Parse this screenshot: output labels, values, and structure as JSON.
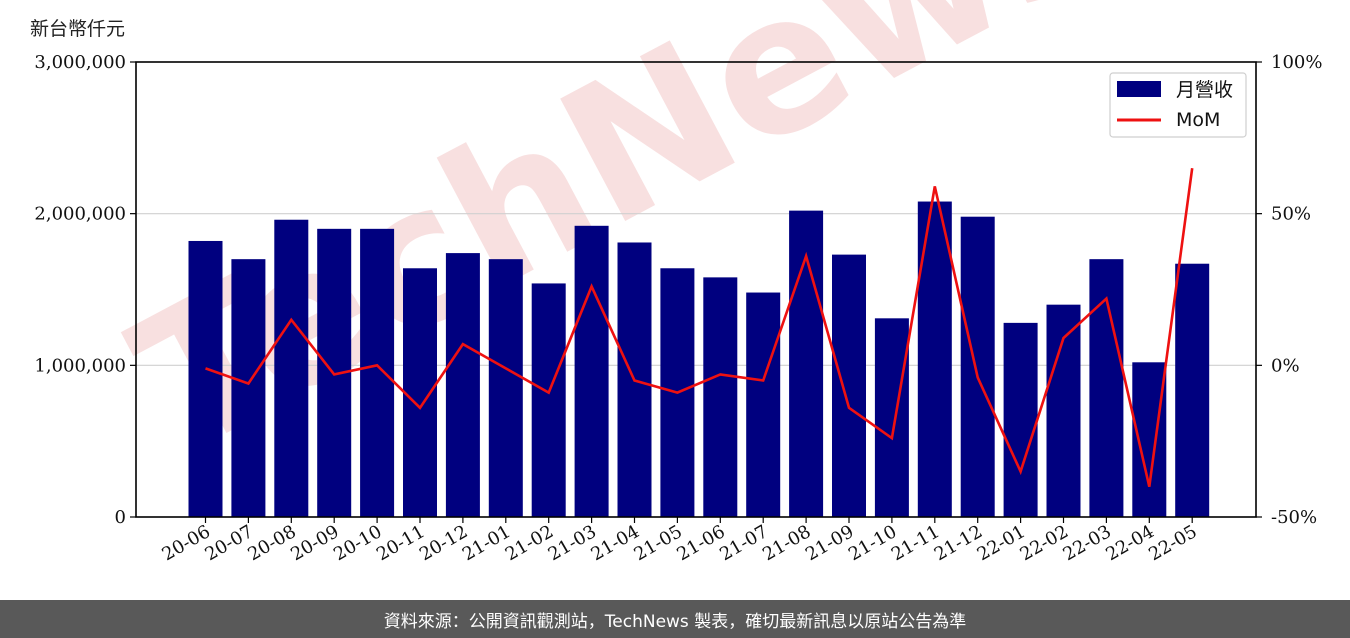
{
  "watermark": "TechNews",
  "unit_label": "新台幣仟元",
  "footer_text": "資料來源：公開資訊觀測站，TechNews 製表，確切最新訊息以原站公告為準",
  "colors": {
    "bar": "#00007f",
    "line": "#ee1111",
    "footer_bg": "#595959",
    "watermark": "#f3c6c6"
  },
  "chart_data": {
    "type": "bar",
    "categories": [
      "20-06",
      "20-07",
      "20-08",
      "20-09",
      "20-10",
      "20-11",
      "20-12",
      "21-01",
      "21-02",
      "21-03",
      "21-04",
      "21-05",
      "21-06",
      "21-07",
      "21-08",
      "21-09",
      "21-10",
      "21-11",
      "21-12",
      "22-01",
      "22-02",
      "22-03",
      "22-04",
      "22-05"
    ],
    "series": [
      {
        "name": "月營收",
        "type": "bar",
        "axis": "left",
        "values": [
          1820000,
          1700000,
          1960000,
          1900000,
          1900000,
          1640000,
          1740000,
          1700000,
          1540000,
          1920000,
          1810000,
          1640000,
          1580000,
          1480000,
          2020000,
          1730000,
          1310000,
          2080000,
          1980000,
          1280000,
          1400000,
          1700000,
          1020000,
          1670000
        ]
      },
      {
        "name": "MoM",
        "type": "line",
        "axis": "right",
        "values": [
          -1,
          -6,
          15,
          -3,
          0,
          -14,
          7,
          -1,
          -9,
          26,
          -5,
          -9,
          -3,
          -5,
          36,
          -14,
          -24,
          59,
          -4,
          -35,
          9,
          22,
          -40,
          65
        ]
      }
    ],
    "yticks_left": [
      "0",
      "1,000,000",
      "2,000,000",
      "3,000,000"
    ],
    "yticks_right": [
      "-50%",
      "0%",
      "50%",
      "100%"
    ],
    "ylim_left": [
      0,
      3000000
    ],
    "ylim_right": [
      -50,
      100
    ],
    "grid": "horizontal",
    "legend_position": "top-right"
  }
}
